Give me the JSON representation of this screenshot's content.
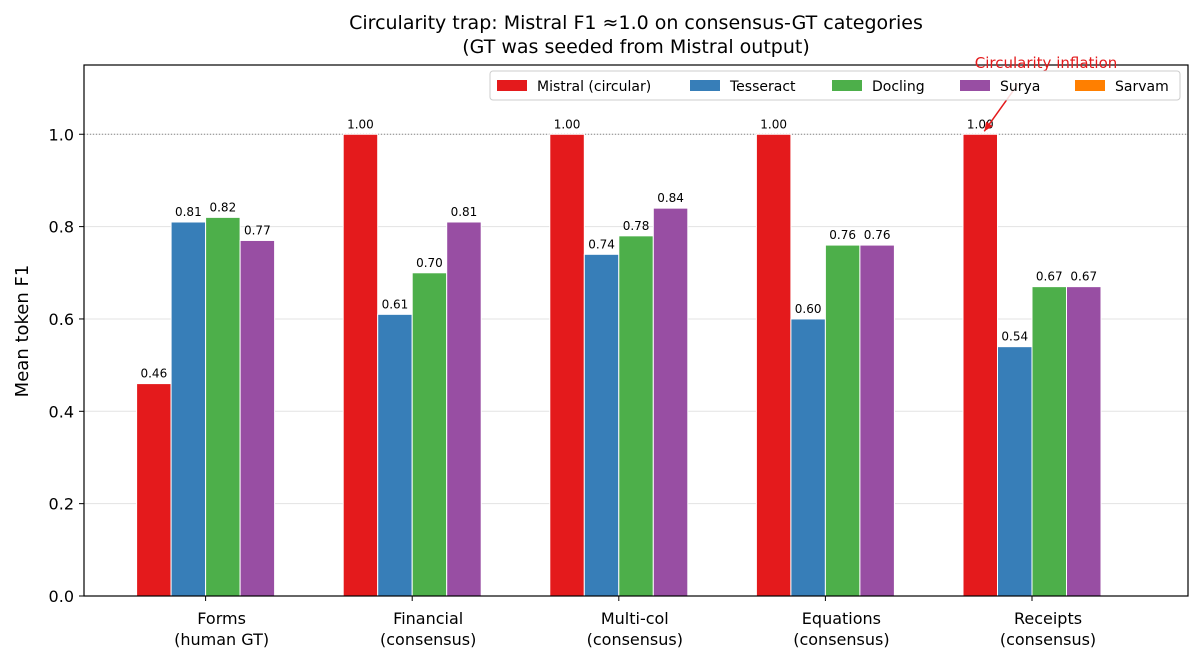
{
  "chart_data": {
    "type": "bar",
    "title": "Circularity trap: Mistral F1 ≈1.0 on consensus-GT categories",
    "subtitle": "(GT was seeded from Mistral output)",
    "xlabel": "",
    "ylabel": "Mean token F1",
    "ylim": [
      0,
      1.15
    ],
    "yticks": [
      0.0,
      0.2,
      0.4,
      0.6,
      0.8,
      1.0
    ],
    "ytick_labels": [
      "0.0",
      "0.2",
      "0.4",
      "0.6",
      "0.8",
      "1.0"
    ],
    "grid": "horizontal",
    "reference_line": 1.0,
    "categories": [
      [
        "Forms",
        "(human GT)"
      ],
      [
        "Financial",
        "(consensus)"
      ],
      [
        "Multi-col",
        "(consensus)"
      ],
      [
        "Equations",
        "(consensus)"
      ],
      [
        "Receipts",
        "(consensus)"
      ]
    ],
    "series": [
      {
        "name": "Mistral (circular)",
        "color": "#e41a1c",
        "values": [
          0.46,
          1.0,
          1.0,
          1.0,
          1.0
        ],
        "labels": [
          "0.46",
          "1.00",
          "1.00",
          "1.00",
          "1.00"
        ]
      },
      {
        "name": "Tesseract",
        "color": "#377eb8",
        "values": [
          0.81,
          0.61,
          0.74,
          0.6,
          0.54
        ],
        "labels": [
          "0.81",
          "0.61",
          "0.74",
          "0.60",
          "0.54"
        ]
      },
      {
        "name": "Docling",
        "color": "#4daf4a",
        "values": [
          0.82,
          0.7,
          0.78,
          0.76,
          0.67
        ],
        "labels": [
          "0.82",
          "0.70",
          "0.78",
          "0.76",
          "0.67"
        ]
      },
      {
        "name": "Surya",
        "color": "#984ea3",
        "values": [
          0.77,
          0.81,
          0.84,
          0.76,
          0.67
        ],
        "labels": [
          "0.77",
          "0.81",
          "0.84",
          "0.76",
          "0.67"
        ]
      },
      {
        "name": "Sarvam",
        "color": "#ff7f00",
        "values": [
          null,
          null,
          null,
          null,
          null
        ],
        "labels": [
          null,
          null,
          null,
          null,
          null
        ]
      }
    ],
    "legend_position": "top-right",
    "annotation": {
      "text": "Circularity inflation",
      "target_category": 4,
      "target_series": 0
    }
  }
}
